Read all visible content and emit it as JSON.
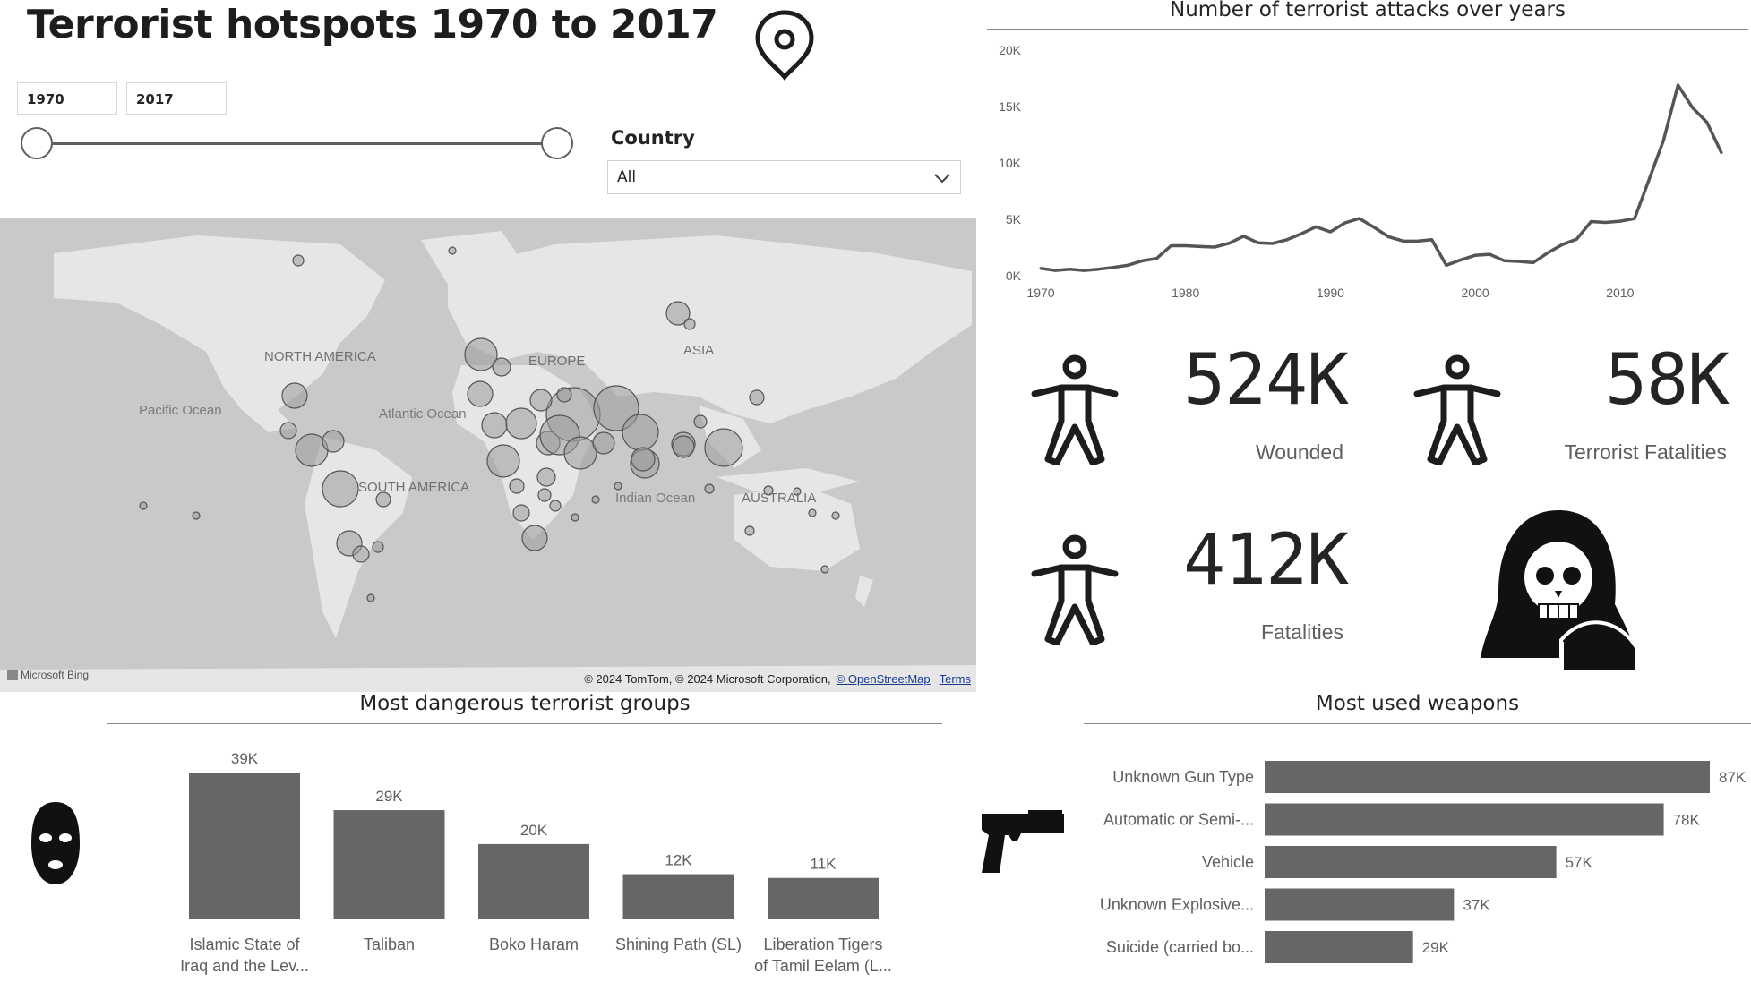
{
  "page": {
    "title": "Terrorist hotspots 1970 to 2017"
  },
  "year_slicer": {
    "start": "1970",
    "end": "2017"
  },
  "country_slicer": {
    "label": "Country",
    "value": "All"
  },
  "map": {
    "labels": {
      "north_america": "NORTH AMERICA",
      "pacific": "Pacific Ocean",
      "atlantic": "Atlantic Ocean",
      "europe": "EUROPE",
      "asia": "ASIA",
      "south_america": "SOUTH AMERICA",
      "indian": "Indian Ocean",
      "australia": "AUSTRALIA"
    },
    "credit": "© 2024 TomTom, © 2024 Microsoft Corporation,",
    "credit_link_osm": "© OpenStreetMap",
    "credit_link_terms": "Terms",
    "provider": "Microsoft Bing"
  },
  "kpis": {
    "wounded": {
      "value": "524K",
      "label": "Wounded"
    },
    "terrorist_fatalities": {
      "value": "58K",
      "label": "Terrorist Fatalities"
    },
    "fatalities": {
      "value": "412K",
      "label": "Fatalities"
    }
  },
  "colors": {
    "bar": "#666666",
    "line": "#555555",
    "map_bg": "#c9c9c9",
    "land": "#e6e6e6"
  },
  "chart_data": [
    {
      "type": "line",
      "title": "Number of terrorist attacks over years",
      "xlabel": "",
      "ylabel": "",
      "ylim": [
        0,
        20000
      ],
      "xlim": [
        1970,
        2017
      ],
      "x_ticks": [
        "1970",
        "1980",
        "1990",
        "2000",
        "2010"
      ],
      "y_ticks": [
        "0K",
        "5K",
        "10K",
        "15K",
        "20K"
      ],
      "x": [
        1970,
        1971,
        1972,
        1973,
        1974,
        1975,
        1976,
        1977,
        1978,
        1979,
        1980,
        1981,
        1982,
        1983,
        1984,
        1985,
        1986,
        1987,
        1988,
        1989,
        1990,
        1991,
        1992,
        1993,
        1994,
        1995,
        1996,
        1997,
        1998,
        1999,
        2000,
        2001,
        2002,
        2003,
        2004,
        2005,
        2006,
        2007,
        2008,
        2009,
        2010,
        2011,
        2012,
        2013,
        2014,
        2015,
        2016,
        2017
      ],
      "values": [
        650,
        470,
        570,
        470,
        580,
        740,
        920,
        1320,
        1530,
        2660,
        2660,
        2590,
        2540,
        2870,
        3500,
        2920,
        2860,
        3190,
        3720,
        4330,
        3890,
        4680,
        5070,
        4300,
        3460,
        3080,
        3060,
        3200,
        930,
        1400,
        1810,
        1900,
        1330,
        1270,
        1160,
        2020,
        2750,
        3240,
        4800,
        4720,
        4830,
        5060,
        8500,
        12000,
        16900,
        14900,
        13600,
        10900
      ]
    },
    {
      "type": "bar",
      "title": "Most dangerous terrorist groups",
      "categories": [
        "Islamic State of Iraq and the Lev...",
        "Taliban",
        "Boko Haram",
        "Shining Path (SL)",
        "Liberation Tigers of Tamil Eelam (L..."
      ],
      "category_lines": [
        [
          "Islamic State of",
          "Iraq and the Lev..."
        ],
        [
          "Taliban"
        ],
        [
          "Boko Haram"
        ],
        [
          "Shining Path (SL)"
        ],
        [
          "Liberation Tigers",
          "of Tamil Eelam (L..."
        ]
      ],
      "values": [
        39000,
        29000,
        20000,
        12000,
        11000
      ],
      "data_labels": [
        "39K",
        "29K",
        "20K",
        "12K",
        "11K"
      ]
    },
    {
      "type": "bar",
      "orientation": "horizontal",
      "title": "Most used weapons",
      "categories": [
        "Unknown Gun Type",
        "Automatic or Semi-...",
        "Vehicle",
        "Unknown Explosive...",
        "Suicide (carried bo..."
      ],
      "values": [
        87000,
        78000,
        57000,
        37000,
        29000
      ],
      "data_labels": [
        "87K",
        "78K",
        "57K",
        "37K",
        "29K"
      ]
    }
  ]
}
